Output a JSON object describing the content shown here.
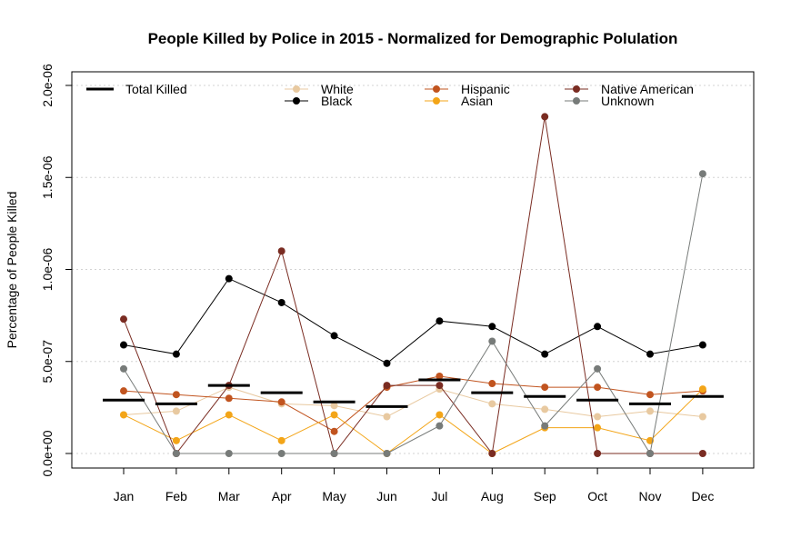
{
  "chart_data": {
    "type": "line",
    "title": "People Killed by Police in 2015 - Normalized for Demographic Polulation",
    "xlabel": "",
    "ylabel": "Percentage of People Killed",
    "categories": [
      "Jan",
      "Feb",
      "Mar",
      "Apr",
      "May",
      "Jun",
      "Jul",
      "Aug",
      "Sep",
      "Oct",
      "Nov",
      "Dec"
    ],
    "ylim": [
      0,
      2e-06
    ],
    "yticks": [
      0,
      5e-07,
      1e-06,
      1.5e-06,
      2e-06
    ],
    "ytick_labels": [
      "0.0e+00",
      "5.0e-07",
      "1.0e-06",
      "1.5e-06",
      "2.0e-06"
    ],
    "grid": "horizontal dotted",
    "legend_position": "top",
    "total": {
      "name": "Total Killed",
      "color": "#000000",
      "values": [
        2.9e-07,
        2.7e-07,
        3.7e-07,
        3.3e-07,
        2.8e-07,
        2.55e-07,
        4e-07,
        3.3e-07,
        3.1e-07,
        2.9e-07,
        2.7e-07,
        3.1e-07
      ]
    },
    "series": [
      {
        "name": "White",
        "color": "#e8c9a0",
        "values": [
          2.1e-07,
          2.3e-07,
          3.6e-07,
          2.7e-07,
          2.6e-07,
          2e-07,
          3.5e-07,
          2.7e-07,
          2.4e-07,
          2e-07,
          2.3e-07,
          2e-07
        ]
      },
      {
        "name": "Black",
        "color": "#000000",
        "values": [
          5.9e-07,
          5.4e-07,
          9.5e-07,
          8.2e-07,
          6.4e-07,
          4.9e-07,
          7.2e-07,
          6.9e-07,
          5.4e-07,
          6.9e-07,
          5.4e-07,
          5.9e-07
        ]
      },
      {
        "name": "Hispanic",
        "color": "#c1541f",
        "values": [
          3.4e-07,
          3.2e-07,
          3e-07,
          2.8e-07,
          1.2e-07,
          3.6e-07,
          4.2e-07,
          3.8e-07,
          3.6e-07,
          3.6e-07,
          3.2e-07,
          3.4e-07
        ]
      },
      {
        "name": "Asian",
        "color": "#f3a518",
        "values": [
          2.1e-07,
          7e-08,
          2.1e-07,
          7e-08,
          2.1e-07,
          0,
          2.1e-07,
          0,
          1.4e-07,
          1.4e-07,
          7e-08,
          3.5e-07
        ]
      },
      {
        "name": "Native American",
        "color": "#7a2c22",
        "values": [
          7.3e-07,
          0,
          3.7e-07,
          1.1e-06,
          0,
          3.7e-07,
          3.7e-07,
          0,
          1.83e-06,
          0,
          0,
          0
        ]
      },
      {
        "name": "Unknown",
        "color": "#777b79",
        "values": [
          4.6e-07,
          0,
          0,
          0,
          0,
          0,
          1.5e-07,
          6.1e-07,
          1.5e-07,
          4.6e-07,
          0,
          1.52e-06
        ]
      }
    ]
  }
}
